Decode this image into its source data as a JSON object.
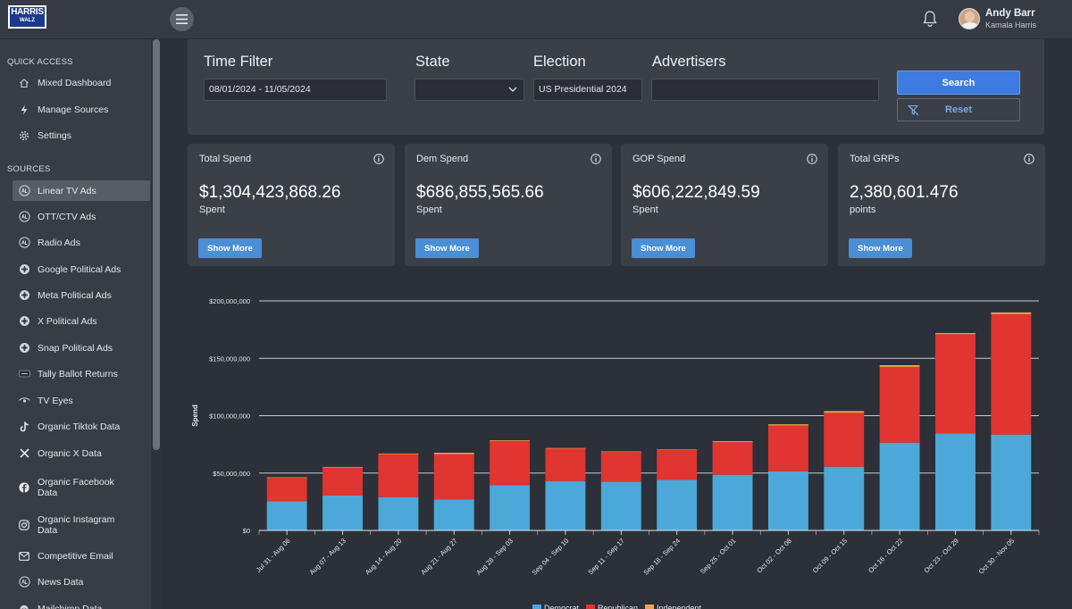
{
  "header": {
    "logo_line1": "HARRIS",
    "logo_line2": "WALZ",
    "user_name": "Andy Barr",
    "user_org": "Kamala Harris"
  },
  "sidebar": {
    "quick_access_title": "QUICK ACCESS",
    "quick_access": [
      {
        "label": "Mixed Dashboard",
        "icon": "home-icon"
      },
      {
        "label": "Manage Sources",
        "icon": "lightning-icon"
      },
      {
        "label": "Settings",
        "icon": "gear-icon"
      }
    ],
    "sources_title": "SOURCES",
    "sources": [
      {
        "label": "Linear TV Ads",
        "icon": "tv-ads-icon",
        "active": true
      },
      {
        "label": "OTT/CTV Ads",
        "icon": "tv-ads-icon"
      },
      {
        "label": "Radio Ads",
        "icon": "tv-ads-icon"
      },
      {
        "label": "Google Political Ads",
        "icon": "political-ads-icon"
      },
      {
        "label": "Meta Political Ads",
        "icon": "political-ads-icon"
      },
      {
        "label": "X Political Ads",
        "icon": "political-ads-icon"
      },
      {
        "label": "Snap Political Ads",
        "icon": "political-ads-icon"
      },
      {
        "label": "Tally Ballot Returns",
        "icon": "ballot-icon"
      },
      {
        "label": "TV Eyes",
        "icon": "eye-icon"
      },
      {
        "label": "Organic Tiktok Data",
        "icon": "tiktok-icon"
      },
      {
        "label": "Organic X Data",
        "icon": "x-icon"
      },
      {
        "label": "Organic Facebook Data",
        "icon": "facebook-icon"
      },
      {
        "label": "Organic Instagram Data",
        "icon": "instagram-icon"
      },
      {
        "label": "Competitive Email",
        "icon": "email-icon"
      },
      {
        "label": "News Data",
        "icon": "news-icon"
      },
      {
        "label": "Mailchimp Data",
        "icon": "mailchimp-icon"
      }
    ]
  },
  "filters": {
    "time_label": "Time Filter",
    "time_value": "08/01/2024 - 11/05/2024",
    "state_label": "State",
    "state_value": "",
    "election_label": "Election",
    "election_value": "US Presidential 2024",
    "advertisers_label": "Advertisers",
    "advertisers_value": "",
    "search_label": "Search",
    "reset_label": "Reset"
  },
  "cards": [
    {
      "title": "Total Spend",
      "value": "$1,304,423,868.26",
      "unit": "Spent",
      "button": "Show More"
    },
    {
      "title": "Dem Spend",
      "value": "$686,855,565.66",
      "unit": "Spent",
      "button": "Show More"
    },
    {
      "title": "GOP Spend",
      "value": "$606,222,849.59",
      "unit": "Spent",
      "button": "Show More"
    },
    {
      "title": "Total GRPs",
      "value": "2,380,601.476",
      "unit": "points",
      "button": "Show More"
    }
  ],
  "colors": {
    "democrat": "#4ba8d8",
    "republican": "#e03530",
    "independent": "#f0a64a",
    "accent": "#3e7be0"
  },
  "chart_data": {
    "type": "bar",
    "stacked": true,
    "ylabel": "Spend",
    "ylim": [
      0,
      200000000
    ],
    "yticks": [
      "$0",
      "$50,000,000",
      "$100,000,000",
      "$150,000,000",
      "$200,000,000"
    ],
    "categories": [
      "Jul 31 - Aug 06",
      "Aug 07 - Aug 13",
      "Aug 14 - Aug 20",
      "Aug 21 - Aug 27",
      "Aug 28 - Sep 03",
      "Sep 04 - Sep 10",
      "Sep 11 - Sep 17",
      "Sep 18 - Sep 24",
      "Sep 25 - Oct 01",
      "Oct 02 - Oct 08",
      "Oct 09 - Oct 15",
      "Oct 16 - Oct 22",
      "Oct 23 - Oct 29",
      "Oct 30 - Nov 05"
    ],
    "series": [
      {
        "name": "Democrat",
        "values": [
          25500000,
          30500000,
          29000000,
          27000000,
          39500000,
          43000000,
          42500000,
          44000000,
          48500000,
          51500000,
          55500000,
          76500000,
          84500000,
          83500000
        ]
      },
      {
        "name": "Republican",
        "values": [
          20500000,
          24500000,
          37500000,
          39500000,
          38500000,
          28500000,
          26000000,
          26000000,
          28500000,
          40000000,
          47000000,
          66000000,
          86500000,
          105000000
        ]
      },
      {
        "name": "Independent",
        "values": [
          300000,
          300000,
          500000,
          1200000,
          600000,
          300000,
          300000,
          500000,
          800000,
          1000000,
          1500000,
          1500000,
          1000000,
          1500000
        ]
      }
    ],
    "legend_position": "bottom",
    "grid": true
  }
}
